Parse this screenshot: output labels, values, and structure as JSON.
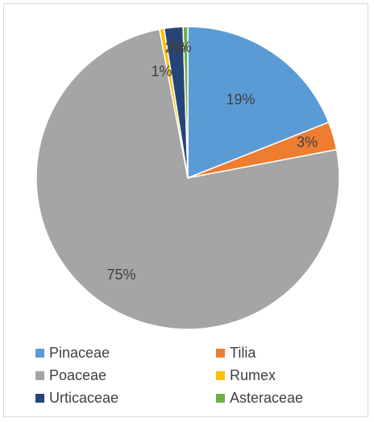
{
  "chart_data": {
    "type": "pie",
    "title": "",
    "categories": [
      "Pinaceae",
      "Tilia",
      "Poaceae",
      "Rumex",
      "Urticaceae",
      "Asteraceae"
    ],
    "values": [
      19,
      3,
      75,
      0.5,
      2,
      0.5
    ],
    "data_labels": [
      "19%",
      "3%",
      "75%",
      "1%",
      "2%",
      "0%"
    ],
    "colors": [
      "#5b9bd5",
      "#ed7d31",
      "#a5a5a5",
      "#ffc000",
      "#264478",
      "#70ad47"
    ],
    "legend_position": "bottom"
  }
}
